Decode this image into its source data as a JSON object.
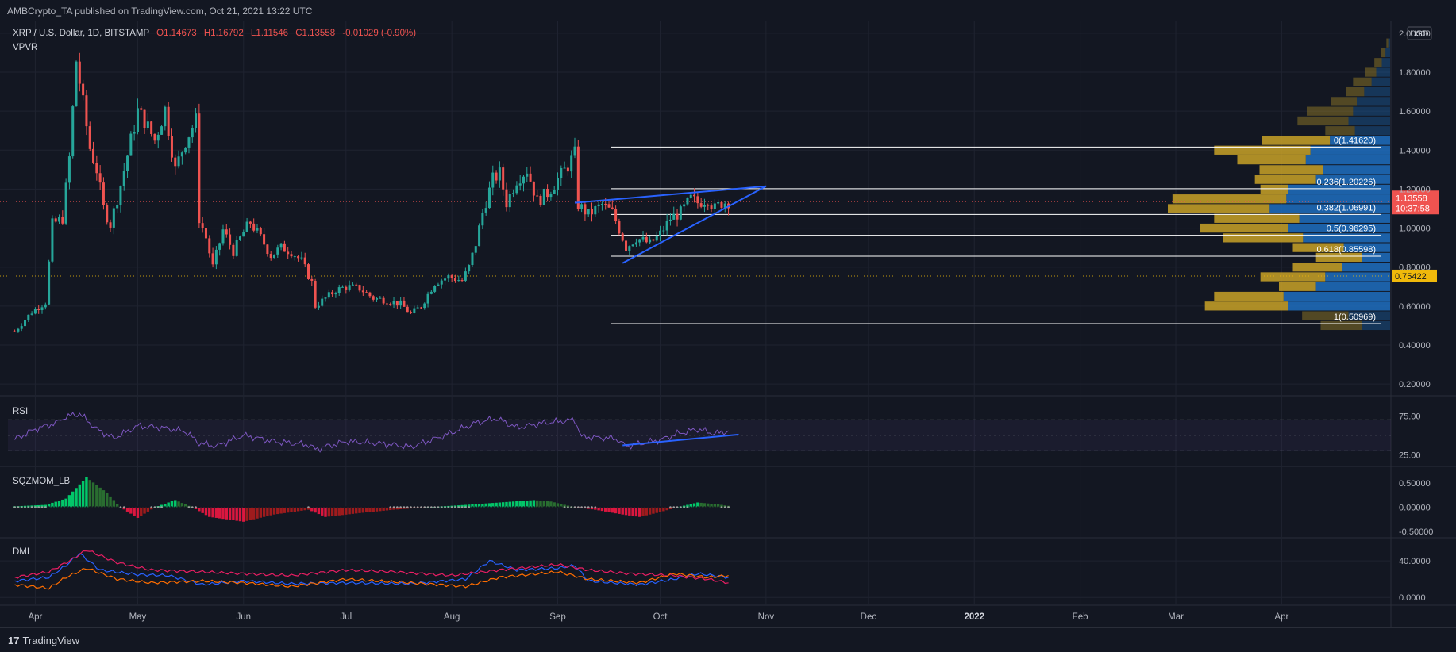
{
  "header": {
    "publish_line": "AMBCrypto_TA published on TradingView.com, Oct 21, 2021 13:22 UTC"
  },
  "legend": {
    "symbol": "XRP / U.S. Dollar, 1D, BITSTAMP",
    "open": "O1.14673",
    "high": "H1.16792",
    "low": "L1.11546",
    "close": "C1.13558",
    "change": "-0.01029 (-0.90%)",
    "indicator": "VPVR"
  },
  "currency": "USD",
  "footer": {
    "brand": "TradingView",
    "logo_glyph": "17"
  },
  "colors": {
    "background": "#131722",
    "up": "#26a69a",
    "down": "#ef5350",
    "trendline": "#2962ff",
    "fib": "#ffffff",
    "vp_gold": "#c9a227",
    "vp_blue": "#1e6fc0",
    "rsi": "#7e57c2",
    "plus_di": "#2962ff",
    "minus_di": "#e91e63",
    "adx": "#ff6d00"
  },
  "chart_data": [
    {
      "type": "candlestick",
      "pane": "price",
      "title": "XRP / U.S. Dollar, 1D, BITSTAMP",
      "x_ticks": [
        "Apr",
        "May",
        "Jun",
        "Jul",
        "Aug",
        "Sep",
        "Oct",
        "Nov",
        "Dec",
        "2022",
        "Feb",
        "Mar",
        "Apr"
      ],
      "x_tick_dates": [
        "2021-04-01",
        "2021-05-01",
        "2021-06-01",
        "2021-07-01",
        "2021-08-01",
        "2021-09-01",
        "2021-10-01",
        "2021-11-01",
        "2021-12-01",
        "2022-01-01",
        "2022-02-01",
        "2022-03-01",
        "2022-04-01"
      ],
      "y_ticks": [
        "2.00000",
        "1.80000",
        "1.60000",
        "1.40000",
        "1.20000",
        "1.00000",
        "0.80000",
        "0.60000",
        "0.40000",
        "0.20000"
      ],
      "ylim": [
        0.18,
        2.02
      ],
      "last_price": "1.13558",
      "countdown": "10:37:58",
      "marked_level": "0.75422",
      "close_path": [
        [
          "2021-03-26",
          0.47
        ],
        [
          "2021-03-31",
          0.57
        ],
        [
          "2021-04-04",
          0.62
        ],
        [
          "2021-04-06",
          1.02
        ],
        [
          "2021-04-09",
          1.05
        ],
        [
          "2021-04-11",
          1.36
        ],
        [
          "2021-04-13",
          1.86
        ],
        [
          "2021-04-14",
          1.75
        ],
        [
          "2021-04-17",
          1.41
        ],
        [
          "2021-04-19",
          1.3
        ],
        [
          "2021-04-21",
          1.1
        ],
        [
          "2021-04-23",
          1.02
        ],
        [
          "2021-04-26",
          1.22
        ],
        [
          "2021-04-29",
          1.45
        ],
        [
          "2021-05-01",
          1.6
        ],
        [
          "2021-05-03",
          1.55
        ],
        [
          "2021-05-06",
          1.45
        ],
        [
          "2021-05-09",
          1.61
        ],
        [
          "2021-05-12",
          1.3
        ],
        [
          "2021-05-15",
          1.45
        ],
        [
          "2021-05-18",
          1.55
        ],
        [
          "2021-05-19",
          1.05
        ],
        [
          "2021-05-21",
          0.95
        ],
        [
          "2021-05-23",
          0.8
        ],
        [
          "2021-05-26",
          0.99
        ],
        [
          "2021-05-29",
          0.88
        ],
        [
          "2021-06-01",
          0.98
        ],
        [
          "2021-06-03",
          1.03
        ],
        [
          "2021-06-06",
          0.95
        ],
        [
          "2021-06-09",
          0.86
        ],
        [
          "2021-06-12",
          0.9
        ],
        [
          "2021-06-15",
          0.88
        ],
        [
          "2021-06-18",
          0.83
        ],
        [
          "2021-06-21",
          0.72
        ],
        [
          "2021-06-22",
          0.6
        ],
        [
          "2021-06-25",
          0.64
        ],
        [
          "2021-06-28",
          0.68
        ],
        [
          "2021-07-01",
          0.7
        ],
        [
          "2021-07-05",
          0.69
        ],
        [
          "2021-07-09",
          0.64
        ],
        [
          "2021-07-13",
          0.63
        ],
        [
          "2021-07-17",
          0.61
        ],
        [
          "2021-07-20",
          0.56
        ],
        [
          "2021-07-23",
          0.6
        ],
        [
          "2021-07-27",
          0.72
        ],
        [
          "2021-07-31",
          0.75
        ],
        [
          "2021-08-04",
          0.73
        ],
        [
          "2021-08-06",
          0.8
        ],
        [
          "2021-08-08",
          0.92
        ],
        [
          "2021-08-10",
          1.08
        ],
        [
          "2021-08-13",
          1.25
        ],
        [
          "2021-08-15",
          1.28
        ],
        [
          "2021-08-17",
          1.13
        ],
        [
          "2021-08-20",
          1.25
        ],
        [
          "2021-08-23",
          1.3
        ],
        [
          "2021-08-26",
          1.14
        ],
        [
          "2021-08-29",
          1.18
        ],
        [
          "2021-09-01",
          1.25
        ],
        [
          "2021-09-04",
          1.32
        ],
        [
          "2021-09-06",
          1.38
        ],
        [
          "2021-09-07",
          1.12
        ],
        [
          "2021-09-10",
          1.07
        ],
        [
          "2021-09-14",
          1.12
        ],
        [
          "2021-09-17",
          1.08
        ],
        [
          "2021-09-20",
          0.95
        ],
        [
          "2021-09-21",
          0.9
        ],
        [
          "2021-09-24",
          0.95
        ],
        [
          "2021-09-28",
          0.92
        ],
        [
          "2021-10-01",
          0.97
        ],
        [
          "2021-10-04",
          1.05
        ],
        [
          "2021-10-07",
          1.08
        ],
        [
          "2021-10-10",
          1.15
        ],
        [
          "2021-10-12",
          1.13
        ],
        [
          "2021-10-15",
          1.15
        ],
        [
          "2021-10-17",
          1.1
        ],
        [
          "2021-10-19",
          1.13
        ],
        [
          "2021-10-21",
          1.136
        ]
      ],
      "fib_levels": [
        {
          "label": "0(1.41620)",
          "value": 1.4162
        },
        {
          "label": "0.236(1.20226)",
          "value": 1.20226
        },
        {
          "label": "0.382(1.06991)",
          "value": 1.06991
        },
        {
          "label": "0.5(0.96295)",
          "value": 0.96295
        },
        {
          "label": "0.618(0.85598)",
          "value": 0.85598
        },
        {
          "label": "1(0.50969)",
          "value": 0.50969
        }
      ],
      "fib_range": [
        "2021-09-06",
        "2022-04-30"
      ],
      "trendlines": [
        {
          "from": [
            "2021-09-06",
            1.13
          ],
          "to": [
            "2021-11-01",
            1.215
          ]
        },
        {
          "from": [
            "2021-09-20",
            0.82
          ],
          "to": [
            "2021-11-01",
            1.215
          ]
        }
      ],
      "volume_profile": [
        {
          "price": 1.95,
          "total": 4,
          "up": 2
        },
        {
          "price": 1.9,
          "total": 10,
          "up": 5
        },
        {
          "price": 1.85,
          "total": 17,
          "up": 9
        },
        {
          "price": 1.8,
          "total": 27,
          "up": 15
        },
        {
          "price": 1.75,
          "total": 40,
          "up": 20
        },
        {
          "price": 1.7,
          "total": 48,
          "up": 28
        },
        {
          "price": 1.65,
          "total": 64,
          "up": 36
        },
        {
          "price": 1.6,
          "total": 90,
          "up": 40
        },
        {
          "price": 1.55,
          "total": 100,
          "up": 45
        },
        {
          "price": 1.5,
          "total": 70,
          "up": 38
        },
        {
          "price": 1.45,
          "total": 138,
          "up": 65
        },
        {
          "price": 1.4,
          "total": 190,
          "up": 86
        },
        {
          "price": 1.35,
          "total": 165,
          "up": 91
        },
        {
          "price": 1.3,
          "total": 141,
          "up": 72
        },
        {
          "price": 1.25,
          "total": 146,
          "up": 80
        },
        {
          "price": 1.2,
          "total": 140,
          "up": 110
        },
        {
          "price": 1.15,
          "total": 235,
          "up": 112
        },
        {
          "price": 1.1,
          "total": 240,
          "up": 130
        },
        {
          "price": 1.05,
          "total": 190,
          "up": 98
        },
        {
          "price": 1.0,
          "total": 205,
          "up": 110
        },
        {
          "price": 0.95,
          "total": 180,
          "up": 94
        },
        {
          "price": 0.9,
          "total": 105,
          "up": 50
        },
        {
          "price": 0.85,
          "total": 80,
          "up": 30
        },
        {
          "price": 0.8,
          "total": 105,
          "up": 52
        },
        {
          "price": 0.75,
          "total": 140,
          "up": 70
        },
        {
          "price": 0.7,
          "total": 120,
          "up": 80
        },
        {
          "price": 0.65,
          "total": 190,
          "up": 115
        },
        {
          "price": 0.6,
          "total": 200,
          "up": 110
        },
        {
          "price": 0.55,
          "total": 95,
          "up": 45
        },
        {
          "price": 0.5,
          "total": 75,
          "up": 30
        }
      ]
    },
    {
      "type": "line",
      "pane": "rsi",
      "title": "RSI",
      "y_ticks": [
        "75.00",
        "25.00"
      ],
      "ylim": [
        15,
        95
      ],
      "band": [
        30,
        70
      ],
      "series": [
        {
          "points": [
            [
              "2021-03-26",
              45
            ],
            [
              "2021-04-01",
              58
            ],
            [
              "2021-04-07",
              66
            ],
            [
              "2021-04-10",
              74
            ],
            [
              "2021-04-14",
              78
            ],
            [
              "2021-04-19",
              58
            ],
            [
              "2021-04-24",
              46
            ],
            [
              "2021-05-01",
              62
            ],
            [
              "2021-05-08",
              60
            ],
            [
              "2021-05-15",
              55
            ],
            [
              "2021-05-19",
              40
            ],
            [
              "2021-05-24",
              36
            ],
            [
              "2021-06-01",
              50
            ],
            [
              "2021-06-10",
              42
            ],
            [
              "2021-06-20",
              38
            ],
            [
              "2021-06-22",
              32
            ],
            [
              "2021-07-01",
              42
            ],
            [
              "2021-07-10",
              40
            ],
            [
              "2021-07-20",
              35
            ],
            [
              "2021-07-30",
              50
            ],
            [
              "2021-08-08",
              66
            ],
            [
              "2021-08-14",
              72
            ],
            [
              "2021-08-20",
              60
            ],
            [
              "2021-08-28",
              66
            ],
            [
              "2021-09-06",
              70
            ],
            [
              "2021-09-08",
              48
            ],
            [
              "2021-09-18",
              46
            ],
            [
              "2021-09-21",
              36
            ],
            [
              "2021-10-01",
              44
            ],
            [
              "2021-10-06",
              52
            ],
            [
              "2021-10-12",
              58
            ],
            [
              "2021-10-17",
              52
            ],
            [
              "2021-10-21",
              56
            ]
          ]
        }
      ],
      "trendline": {
        "from": [
          "2021-09-20",
          37
        ],
        "to": [
          "2021-10-24",
          51
        ]
      }
    },
    {
      "type": "bar",
      "pane": "squeeze",
      "title": "SQZMOM_LB",
      "y_ticks": [
        "0.50000",
        "0.00000",
        "-0.50000"
      ],
      "ylim": [
        -0.55,
        0.75
      ],
      "values_path": [
        [
          "2021-03-26",
          0.02
        ],
        [
          "2021-04-04",
          0.05
        ],
        [
          "2021-04-10",
          0.18
        ],
        [
          "2021-04-16",
          0.62
        ],
        [
          "2021-04-22",
          0.3
        ],
        [
          "2021-04-26",
          0.0
        ],
        [
          "2021-05-01",
          -0.22
        ],
        [
          "2021-05-06",
          0.0
        ],
        [
          "2021-05-12",
          0.15
        ],
        [
          "2021-05-17",
          0.0
        ],
        [
          "2021-05-22",
          -0.2
        ],
        [
          "2021-06-01",
          -0.3
        ],
        [
          "2021-06-10",
          -0.15
        ],
        [
          "2021-06-20",
          -0.05
        ],
        [
          "2021-06-25",
          -0.2
        ],
        [
          "2021-07-05",
          -0.12
        ],
        [
          "2021-07-15",
          -0.05
        ],
        [
          "2021-07-25",
          0.0
        ],
        [
          "2021-08-05",
          0.05
        ],
        [
          "2021-08-15",
          0.1
        ],
        [
          "2021-08-25",
          0.15
        ],
        [
          "2021-08-30",
          0.12
        ],
        [
          "2021-09-06",
          0.0
        ],
        [
          "2021-09-12",
          -0.05
        ],
        [
          "2021-09-20",
          -0.15
        ],
        [
          "2021-09-25",
          -0.2
        ],
        [
          "2021-10-01",
          -0.1
        ],
        [
          "2021-10-06",
          0.0
        ],
        [
          "2021-10-12",
          0.1
        ],
        [
          "2021-10-18",
          0.06
        ],
        [
          "2021-10-21",
          0.03
        ]
      ]
    },
    {
      "type": "line",
      "pane": "dmi",
      "title": "DMI",
      "y_ticks": [
        "40.0000",
        "0.0000"
      ],
      "ylim": [
        -5,
        60
      ],
      "series": [
        {
          "color_key": "plus_di",
          "points": [
            [
              "2021-03-26",
              18
            ],
            [
              "2021-04-05",
              22
            ],
            [
              "2021-04-10",
              35
            ],
            [
              "2021-04-14",
              48
            ],
            [
              "2021-04-20",
              30
            ],
            [
              "2021-05-01",
              25
            ],
            [
              "2021-05-10",
              24
            ],
            [
              "2021-05-20",
              14
            ],
            [
              "2021-06-01",
              18
            ],
            [
              "2021-06-15",
              15
            ],
            [
              "2021-07-01",
              16
            ],
            [
              "2021-07-20",
              15
            ],
            [
              "2021-08-05",
              20
            ],
            [
              "2021-08-12",
              40
            ],
            [
              "2021-08-20",
              30
            ],
            [
              "2021-09-01",
              32
            ],
            [
              "2021-09-06",
              35
            ],
            [
              "2021-09-10",
              18
            ],
            [
              "2021-09-25",
              14
            ],
            [
              "2021-10-05",
              20
            ],
            [
              "2021-10-12",
              26
            ],
            [
              "2021-10-21",
              22
            ]
          ]
        },
        {
          "color_key": "minus_di",
          "points": [
            [
              "2021-03-26",
              22
            ],
            [
              "2021-04-05",
              28
            ],
            [
              "2021-04-12",
              42
            ],
            [
              "2021-04-16",
              52
            ],
            [
              "2021-04-25",
              38
            ],
            [
              "2021-05-05",
              30
            ],
            [
              "2021-05-20",
              28
            ],
            [
              "2021-06-01",
              26
            ],
            [
              "2021-06-15",
              24
            ],
            [
              "2021-07-01",
              30
            ],
            [
              "2021-07-15",
              28
            ],
            [
              "2021-08-01",
              24
            ],
            [
              "2021-08-15",
              30
            ],
            [
              "2021-09-01",
              36
            ],
            [
              "2021-09-10",
              30
            ],
            [
              "2021-09-22",
              26
            ],
            [
              "2021-10-05",
              24
            ],
            [
              "2021-10-15",
              20
            ],
            [
              "2021-10-21",
              16
            ]
          ]
        },
        {
          "color_key": "adx",
          "points": [
            [
              "2021-03-26",
              14
            ],
            [
              "2021-04-05",
              10
            ],
            [
              "2021-04-10",
              22
            ],
            [
              "2021-04-16",
              32
            ],
            [
              "2021-04-25",
              20
            ],
            [
              "2021-05-05",
              16
            ],
            [
              "2021-05-20",
              18
            ],
            [
              "2021-06-01",
              16
            ],
            [
              "2021-06-15",
              12
            ],
            [
              "2021-07-01",
              20
            ],
            [
              "2021-07-20",
              16
            ],
            [
              "2021-08-05",
              12
            ],
            [
              "2021-08-15",
              22
            ],
            [
              "2021-09-01",
              28
            ],
            [
              "2021-09-10",
              20
            ],
            [
              "2021-09-25",
              16
            ],
            [
              "2021-10-05",
              26
            ],
            [
              "2021-10-15",
              22
            ],
            [
              "2021-10-21",
              24
            ]
          ]
        }
      ]
    }
  ]
}
